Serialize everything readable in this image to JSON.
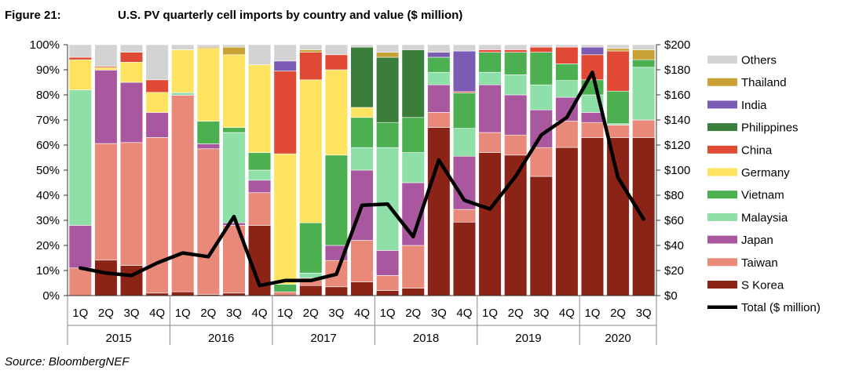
{
  "figure_label": "Figure 21:",
  "chart_data": {
    "type": "bar",
    "title": "U.S. PV quarterly cell imports by country and value ($ million)",
    "source": "Source: BloombergNEF",
    "categories": [
      "1Q",
      "2Q",
      "3Q",
      "4Q",
      "1Q",
      "2Q",
      "3Q",
      "4Q",
      "1Q",
      "2Q",
      "3Q",
      "4Q",
      "1Q",
      "2Q",
      "3Q",
      "4Q",
      "1Q",
      "2Q",
      "3Q",
      "4Q",
      "1Q",
      "2Q",
      "3Q"
    ],
    "years": [
      {
        "label": "2015",
        "span": 4
      },
      {
        "label": "2016",
        "span": 4
      },
      {
        "label": "2017",
        "span": 4
      },
      {
        "label": "2018",
        "span": 4
      },
      {
        "label": "2019",
        "span": 4
      },
      {
        "label": "2020",
        "span": 3
      }
    ],
    "y_left": {
      "min": 0,
      "max": 100,
      "step": 10,
      "ticks": [
        "0%",
        "10%",
        "20%",
        "30%",
        "40%",
        "50%",
        "60%",
        "70%",
        "80%",
        "90%",
        "100%"
      ]
    },
    "y_right": {
      "min": 0,
      "max": 200,
      "step": 20,
      "ticks": [
        "$0",
        "$20",
        "$40",
        "$60",
        "$80",
        "$100",
        "$120",
        "$140",
        "$160",
        "$180",
        "$200"
      ]
    },
    "series": [
      {
        "name": "S Korea",
        "color": "#8b2316",
        "values": [
          0,
          14,
          12,
          1,
          1.5,
          0.5,
          1,
          28,
          0,
          4,
          3.5,
          5.5,
          2,
          3,
          67,
          29,
          57,
          56,
          47.5,
          62,
          63,
          63,
          63
        ]
      },
      {
        "name": "Taiwan",
        "color": "#e8897a",
        "values": [
          11,
          46,
          49,
          62,
          78,
          58,
          27,
          13,
          1.5,
          3,
          10.5,
          16.5,
          6,
          17,
          6,
          5,
          8,
          8,
          11.5,
          11,
          6,
          5,
          7
        ]
      },
      {
        "name": "Japan",
        "color": "#a9579e",
        "values": [
          17,
          29,
          24,
          10,
          0,
          2,
          1,
          5,
          0,
          0,
          6,
          28,
          10,
          25,
          11,
          21,
          19,
          16,
          15,
          10,
          4,
          0,
          0
        ]
      },
      {
        "name": "Malaysia",
        "color": "#8fe0a8",
        "values": [
          54,
          0,
          0,
          0,
          1,
          0,
          36,
          4,
          0,
          2,
          0,
          9,
          41,
          12,
          5,
          11,
          5,
          8,
          10,
          7,
          7,
          0.5,
          21
        ]
      },
      {
        "name": "Vietnam",
        "color": "#4caf50",
        "values": [
          0,
          0,
          0,
          0,
          0,
          9,
          2,
          7,
          3,
          20,
          36,
          12,
          10,
          14,
          6,
          14,
          8,
          9,
          13,
          7,
          6,
          13,
          3
        ]
      },
      {
        "name": "Germany",
        "color": "#fde35f",
        "values": [
          12,
          1,
          8,
          8,
          17,
          29,
          29,
          35,
          52,
          57,
          34,
          4,
          0,
          0,
          0,
          0,
          0,
          0,
          0,
          0,
          0,
          0,
          0
        ]
      },
      {
        "name": "China",
        "color": "#e04a34",
        "values": [
          1,
          0.5,
          4,
          5,
          0,
          0,
          0,
          0,
          33,
          11,
          6,
          0,
          0,
          0,
          0,
          0.5,
          1,
          1,
          2,
          7,
          10,
          16,
          0
        ]
      },
      {
        "name": "Philippines",
        "color": "#3b7d3b",
        "values": [
          0,
          0,
          0,
          0,
          0,
          0,
          0,
          0,
          0,
          0,
          0,
          24,
          26,
          27,
          0,
          0,
          0,
          0,
          0,
          0,
          0,
          0,
          0
        ]
      },
      {
        "name": "India",
        "color": "#7b5bb3",
        "values": [
          0,
          0,
          0,
          0,
          0,
          0,
          0,
          0,
          4,
          0,
          0,
          0,
          0,
          0,
          2,
          16,
          0,
          0,
          0,
          0,
          3,
          0,
          0
        ]
      },
      {
        "name": "Thailand",
        "color": "#c9a236",
        "values": [
          0,
          0,
          0,
          0,
          0,
          0.5,
          3,
          0,
          0,
          1,
          0,
          0,
          2,
          0,
          0,
          0,
          0,
          0,
          0,
          0,
          0,
          1,
          4
        ]
      },
      {
        "name": "Others",
        "color": "#d3d3d3",
        "values": [
          5,
          8.5,
          3,
          14,
          2,
          1,
          1,
          8,
          6.5,
          2,
          4,
          1,
          3,
          2,
          3,
          2.5,
          2,
          2,
          1,
          1,
          1,
          1.5,
          2
        ]
      }
    ],
    "line": {
      "name": "Total ($ million)",
      "color": "#000000",
      "values": [
        22,
        18,
        16,
        26,
        34,
        31,
        63,
        8,
        12,
        12,
        17,
        72,
        73,
        47,
        108,
        76,
        69,
        95,
        128,
        142,
        178,
        94,
        61
      ]
    }
  }
}
